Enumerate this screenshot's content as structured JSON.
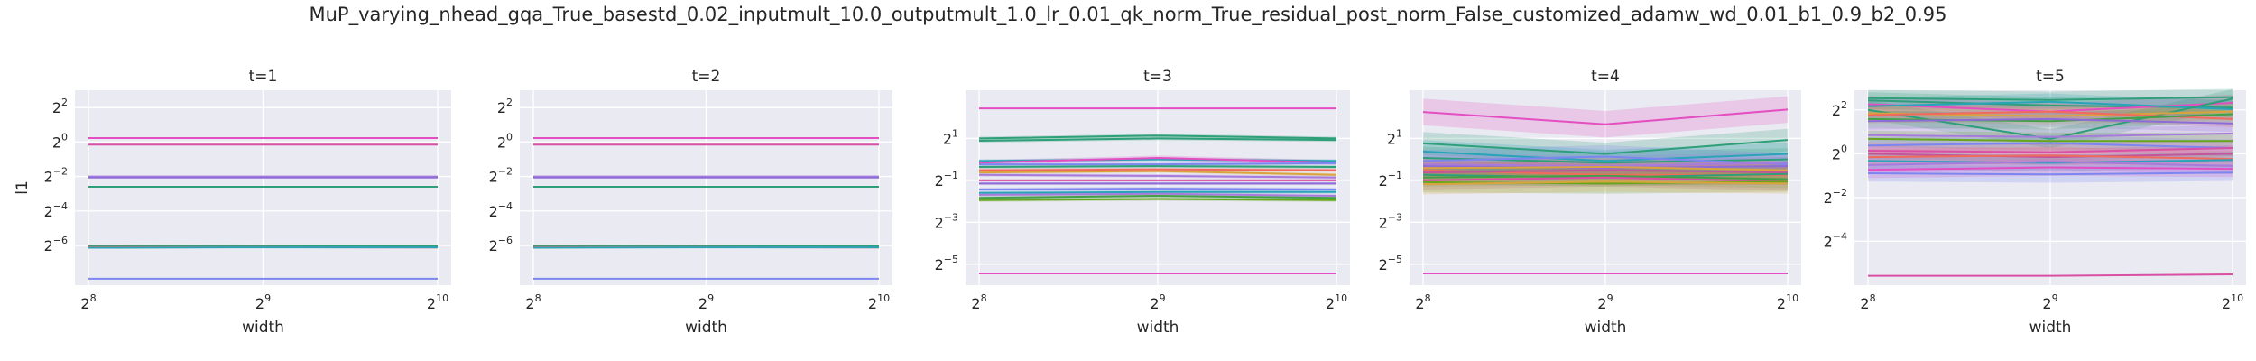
{
  "suptitle": "MuP_varying_nhead_gqa_True_basestd_0.02_inputmult_10.0_outputmult_1.0_lr_0.01_qk_norm_True_residual_post_norm_False_customized_adamw_wd_0.01_b1_0.9_b2_0.95",
  "ylabel": "l1",
  "xlabel": "width",
  "x_ticks": [
    8,
    9,
    10
  ],
  "colors": {
    "panel_bg": "#eaeaf2",
    "grid": "#ffffff",
    "palette": [
      "#e34ec1",
      "#d84fa3",
      "#a77bdc",
      "#2e9f78",
      "#f06a5e",
      "#7d86f0",
      "#43a047",
      "#d9a33d",
      "#29a3b8",
      "#8e6cd8",
      "#66a61e",
      "#c2569a"
    ]
  },
  "chart_data": [
    {
      "type": "line",
      "title": "t=1",
      "x_scale": "log2",
      "y_scale": "log2",
      "x": [
        256,
        512,
        1024
      ],
      "y_ticks": [
        2,
        0,
        -2,
        -4,
        -6
      ],
      "ylim_log2": [
        -8.3,
        3.0
      ],
      "series": [
        {
          "values": [
            1.17,
            1.17,
            1.17
          ],
          "band": 0.02,
          "color_index": 0
        },
        {
          "values": [
            0.9,
            0.9,
            0.9
          ],
          "band": 0.02,
          "color_index": 1
        },
        {
          "values": [
            0.25,
            0.25,
            0.25
          ],
          "band": 0.02,
          "color_index": 2
        },
        {
          "values": [
            0.24,
            0.24,
            0.24
          ],
          "band": 0.02,
          "color_index": 9
        },
        {
          "values": [
            0.165,
            0.165,
            0.165
          ],
          "band": 0.02,
          "color_index": 3
        },
        {
          "values": [
            0.0154,
            0.0151,
            0.0151
          ],
          "band": 0.02,
          "color_index": 3
        },
        {
          "values": [
            0.0146,
            0.0146,
            0.0144
          ],
          "band": 0.02,
          "color_index": 4
        },
        {
          "values": [
            0.0143,
            0.0145,
            0.0145
          ],
          "band": 0.02,
          "color_index": 8
        },
        {
          "values": [
            0.0041,
            0.0041,
            0.0041
          ],
          "band": 0.02,
          "color_index": 5
        }
      ]
    },
    {
      "type": "line",
      "title": "t=2",
      "x_scale": "log2",
      "y_scale": "log2",
      "x": [
        256,
        512,
        1024
      ],
      "y_ticks": [
        2,
        0,
        -2,
        -4,
        -6
      ],
      "ylim_log2": [
        -8.3,
        3.0
      ],
      "series": [
        {
          "values": [
            1.17,
            1.17,
            1.17
          ],
          "band": 0.02,
          "color_index": 0
        },
        {
          "values": [
            0.9,
            0.9,
            0.9
          ],
          "band": 0.02,
          "color_index": 1
        },
        {
          "values": [
            0.25,
            0.25,
            0.25
          ],
          "band": 0.02,
          "color_index": 2
        },
        {
          "values": [
            0.24,
            0.24,
            0.24
          ],
          "band": 0.02,
          "color_index": 9
        },
        {
          "values": [
            0.165,
            0.165,
            0.165
          ],
          "band": 0.02,
          "color_index": 3
        },
        {
          "values": [
            0.0154,
            0.0151,
            0.0151
          ],
          "band": 0.02,
          "color_index": 3
        },
        {
          "values": [
            0.0146,
            0.0146,
            0.0144
          ],
          "band": 0.02,
          "color_index": 4
        },
        {
          "values": [
            0.0143,
            0.0145,
            0.0145
          ],
          "band": 0.02,
          "color_index": 8
        },
        {
          "values": [
            0.0041,
            0.0041,
            0.0041
          ],
          "band": 0.02,
          "color_index": 5
        }
      ]
    },
    {
      "type": "line",
      "title": "t=3",
      "x_scale": "log2",
      "y_scale": "log2",
      "x": [
        256,
        512,
        1024
      ],
      "y_ticks": [
        1,
        -1,
        -3,
        -5
      ],
      "ylim_log2": [
        -6.0,
        3.3
      ],
      "series": [
        {
          "values": [
            5.4,
            5.4,
            5.4
          ],
          "band": 0.02,
          "color_index": 0
        },
        {
          "values": [
            2.0,
            2.2,
            2.0
          ],
          "band": 0.06,
          "color_index": 3
        },
        {
          "values": [
            1.85,
            2.0,
            1.9
          ],
          "band": 0.06,
          "color_index": 3
        },
        {
          "values": [
            0.95,
            1.0,
            0.95
          ],
          "band": 0.06,
          "color_index": 8
        },
        {
          "values": [
            0.9,
            1.05,
            0.9
          ],
          "band": 0.08,
          "color_index": 0
        },
        {
          "values": [
            0.85,
            0.85,
            0.88
          ],
          "band": 0.06,
          "color_index": 5
        },
        {
          "values": [
            0.78,
            0.8,
            0.78
          ],
          "band": 0.06,
          "color_index": 3
        },
        {
          "values": [
            0.7,
            0.72,
            0.7
          ],
          "band": 0.06,
          "color_index": 4
        },
        {
          "values": [
            0.65,
            0.68,
            0.6
          ],
          "band": 0.06,
          "color_index": 7
        },
        {
          "values": [
            0.6,
            0.58,
            0.55
          ],
          "band": 0.06,
          "color_index": 2
        },
        {
          "values": [
            0.5,
            0.5,
            0.5
          ],
          "band": 0.04,
          "color_index": 1
        },
        {
          "values": [
            0.45,
            0.45,
            0.45
          ],
          "band": 0.05,
          "color_index": 9
        },
        {
          "values": [
            0.37,
            0.38,
            0.37
          ],
          "band": 0.06,
          "color_index": 5
        },
        {
          "values": [
            0.33,
            0.34,
            0.34
          ],
          "band": 0.06,
          "color_index": 8
        },
        {
          "values": [
            0.31,
            0.32,
            0.3
          ],
          "band": 0.06,
          "color_index": 2
        },
        {
          "values": [
            0.28,
            0.3,
            0.28
          ],
          "band": 0.06,
          "color_index": 6
        },
        {
          "values": [
            0.26,
            0.27,
            0.26
          ],
          "band": 0.06,
          "color_index": 10
        },
        {
          "values": [
            0.023,
            0.023,
            0.023
          ],
          "band": 0.02,
          "color_index": 0
        }
      ]
    },
    {
      "type": "line",
      "title": "t=4",
      "x_scale": "log2",
      "y_scale": "log2",
      "x": [
        256,
        512,
        1024
      ],
      "y_ticks": [
        1,
        -1,
        -3,
        -5
      ],
      "ylim_log2": [
        -6.0,
        3.3
      ],
      "series": [
        {
          "values": [
            4.8,
            3.2,
            5.2
          ],
          "band": 0.55,
          "color_index": 0
        },
        {
          "values": [
            1.7,
            1.2,
            1.9
          ],
          "band": 0.45,
          "color_index": 3
        },
        {
          "values": [
            1.3,
            0.95,
            1.2
          ],
          "band": 0.45,
          "color_index": 8
        },
        {
          "values": [
            1.05,
            0.9,
            1.0
          ],
          "band": 0.45,
          "color_index": 3
        },
        {
          "values": [
            0.95,
            1.1,
            0.85
          ],
          "band": 0.45,
          "color_index": 5
        },
        {
          "values": [
            0.85,
            0.8,
            0.9
          ],
          "band": 0.4,
          "color_index": 2
        },
        {
          "values": [
            0.8,
            0.75,
            0.8
          ],
          "band": 0.35,
          "color_index": 9
        },
        {
          "values": [
            0.75,
            0.78,
            0.7
          ],
          "band": 0.35,
          "color_index": 7
        },
        {
          "values": [
            0.7,
            0.6,
            0.6
          ],
          "band": 0.4,
          "color_index": 4
        },
        {
          "values": [
            0.65,
            0.7,
            0.65
          ],
          "band": 0.35,
          "color_index": 11
        },
        {
          "values": [
            0.6,
            0.55,
            0.62
          ],
          "band": 0.35,
          "color_index": 3
        },
        {
          "values": [
            0.55,
            0.58,
            0.52
          ],
          "band": 0.35,
          "color_index": 6
        },
        {
          "values": [
            0.5,
            0.55,
            0.48
          ],
          "band": 0.35,
          "color_index": 1
        },
        {
          "values": [
            0.47,
            0.45,
            0.48
          ],
          "band": 0.4,
          "color_index": 10
        },
        {
          "values": [
            0.44,
            0.48,
            0.45
          ],
          "band": 0.4,
          "color_index": 7
        },
        {
          "values": [
            0.023,
            0.023,
            0.023
          ],
          "band": 0.02,
          "color_index": 0
        }
      ]
    },
    {
      "type": "line",
      "title": "t=5",
      "x_scale": "log2",
      "y_scale": "log2",
      "x": [
        256,
        512,
        1024
      ],
      "y_ticks": [
        2,
        0,
        -2,
        -4
      ],
      "ylim_log2": [
        -6.0,
        2.9
      ],
      "series": [
        {
          "values": [
            5.8,
            5.5,
            6.0
          ],
          "band": 0.3,
          "color_index": 3
        },
        {
          "values": [
            5.4,
            4.6,
            4.3
          ],
          "band": 0.3,
          "color_index": 3
        },
        {
          "values": [
            4.8,
            3.8,
            5.0
          ],
          "band": 0.3,
          "color_index": 0
        },
        {
          "values": [
            4.5,
            5.2,
            4.1
          ],
          "band": 0.3,
          "color_index": 8
        },
        {
          "values": [
            4.0,
            1.6,
            5.7
          ],
          "band": 0.35,
          "color_index": 3
        },
        {
          "values": [
            3.6,
            3.3,
            3.8
          ],
          "band": 0.3,
          "color_index": 7
        },
        {
          "values": [
            3.4,
            3.8,
            3.0
          ],
          "band": 0.3,
          "color_index": 4
        },
        {
          "values": [
            3.0,
            2.8,
            3.5
          ],
          "band": 0.3,
          "color_index": 6
        },
        {
          "values": [
            2.8,
            3.0,
            2.6
          ],
          "band": 0.3,
          "color_index": 9
        },
        {
          "values": [
            1.8,
            1.7,
            1.9
          ],
          "band": 0.3,
          "color_index": 2
        },
        {
          "values": [
            1.6,
            1.5,
            1.5
          ],
          "band": 0.3,
          "color_index": 10
        },
        {
          "values": [
            1.3,
            1.4,
            1.2
          ],
          "band": 0.3,
          "color_index": 5
        },
        {
          "values": [
            1.1,
            1.05,
            1.2
          ],
          "band": 0.3,
          "color_index": 1
        },
        {
          "values": [
            1.0,
            0.9,
            1.0
          ],
          "band": 0.3,
          "color_index": 11
        },
        {
          "values": [
            0.9,
            0.95,
            0.85
          ],
          "band": 0.3,
          "color_index": 4
        },
        {
          "values": [
            0.8,
            0.75,
            0.82
          ],
          "band": 0.3,
          "color_index": 8
        },
        {
          "values": [
            0.7,
            0.78,
            0.68
          ],
          "band": 0.3,
          "color_index": 2
        },
        {
          "values": [
            0.6,
            0.65,
            0.62
          ],
          "band": 0.3,
          "color_index": 0
        },
        {
          "values": [
            0.54,
            0.52,
            0.55
          ],
          "band": 0.3,
          "color_index": 5
        },
        {
          "values": [
            0.021,
            0.021,
            0.022
          ],
          "band": 0.02,
          "color_index": 1
        }
      ]
    }
  ]
}
